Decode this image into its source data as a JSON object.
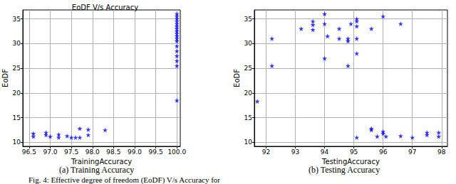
{
  "figure_caption": "Fig. 4: Effective degree of freedom (EoDF) V/s Accuracy for",
  "chart_data": [
    {
      "type": "scatter",
      "title": "EoDF V/s Accuracy",
      "caption": "(a) Training Accuracy",
      "x_label": "TrainingAccuracy",
      "y_label": "EoDF",
      "color": "#0000ff",
      "marker": "star",
      "grid": true,
      "x": [
        100.0,
        100.0,
        100.0,
        100.0,
        100.0,
        100.0,
        100.0,
        100.0,
        100.0,
        100.0,
        100.0,
        100.0,
        100.0,
        100.0,
        100.0,
        100.0,
        100.0,
        100.0,
        96.6,
        96.6,
        96.9,
        96.9,
        97.0,
        97.2,
        97.2,
        97.4,
        97.5,
        97.6,
        97.7,
        97.7,
        97.9,
        97.9,
        98.3
      ],
      "values": [
        18.5,
        25.5,
        26.5,
        27.5,
        28.5,
        29.5,
        30.5,
        31,
        31.5,
        32,
        32.5,
        33,
        33.5,
        34,
        34.5,
        35,
        35.5,
        36,
        11.8,
        11.2,
        11.5,
        12.0,
        11.2,
        11.6,
        11.0,
        11.3,
        11.0,
        11.0,
        12.8,
        11.0,
        12.6,
        11.5,
        12.5
      ],
      "xlim": [
        96.35,
        100.08
      ],
      "xticks": [
        96.5,
        {
          "value": 97,
          "label": "97.0"
        },
        97.5,
        {
          "value": 98,
          "label": "98.0"
        },
        98.5,
        {
          "value": 99,
          "label": "99.0"
        },
        99.5,
        {
          "value": 100,
          "label": "100.0"
        }
      ],
      "ylim": [
        9.2,
        36.8
      ],
      "yticks": [
        10,
        15,
        20,
        25,
        30,
        35
      ]
    },
    {
      "type": "scatter",
      "caption": "(b) Testing Accuracy",
      "x_label": "TestingAccuracy",
      "y_label": "EoDF",
      "color": "#0000ff",
      "marker": "star",
      "grid": true,
      "x": [
        91.7,
        92.2,
        92.2,
        93.2,
        93.6,
        93.6,
        93.6,
        94.0,
        94.0,
        94.1,
        94.0,
        94.5,
        94.5,
        94.8,
        94.8,
        94.8,
        94.9,
        95.1,
        95.1,
        95.1,
        95.1,
        95.1,
        95.1,
        95.6,
        95.6,
        95.6,
        95.8,
        96.0,
        96.0,
        96.0,
        96.1,
        96.6,
        96.6,
        97.0,
        97.5,
        97.5,
        97.9,
        97.9
      ],
      "values": [
        18.3,
        31,
        25.5,
        33,
        34.5,
        33.8,
        32.8,
        36,
        34,
        31.5,
        27,
        33,
        31,
        31,
        30.5,
        25.5,
        34,
        35,
        34.5,
        33.5,
        31,
        28,
        11,
        33,
        12.8,
        12.5,
        11.2,
        35.5,
        12.2,
        11.8,
        11.2,
        34,
        11.3,
        11,
        12,
        11.5,
        12,
        11.2
      ],
      "xlim": [
        91.6,
        98.2
      ],
      "xticks": [
        92,
        93,
        94,
        95,
        96,
        97,
        98
      ],
      "ylim": [
        9.2,
        36.8
      ],
      "yticks": [
        10,
        15,
        20,
        25,
        30,
        35
      ]
    }
  ]
}
